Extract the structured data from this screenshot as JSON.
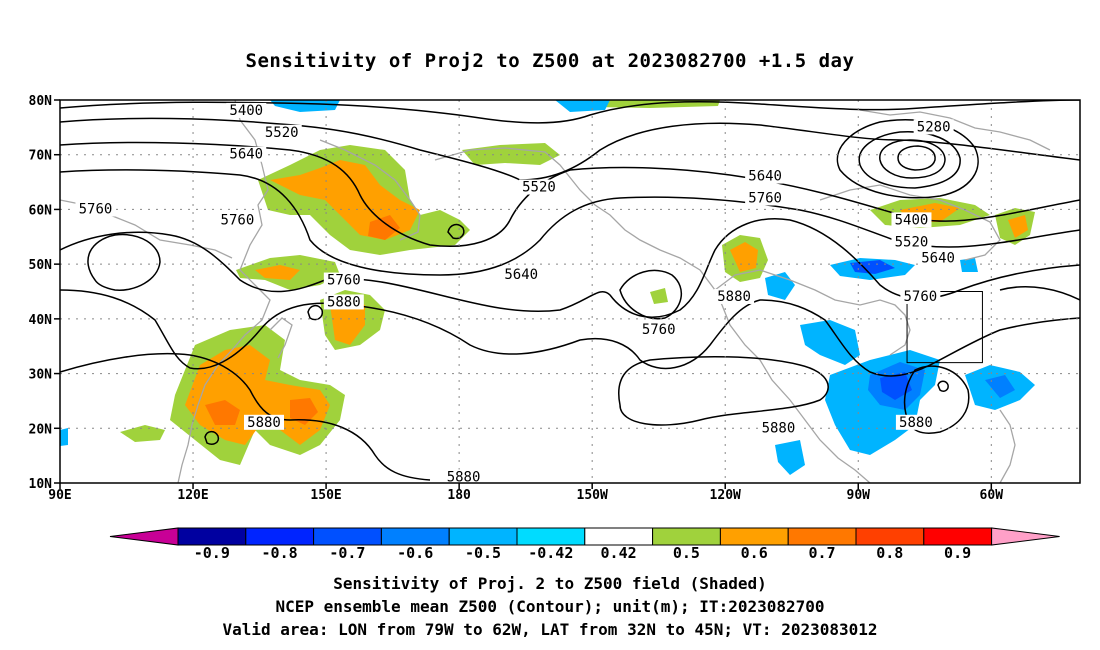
{
  "title": "Sensitivity of Proj2 to Z500 at 2023082700 +1.5 day",
  "map": {
    "lat_labels": [
      "80N",
      "70N",
      "60N",
      "50N",
      "40N",
      "30N",
      "20N",
      "10N"
    ],
    "lon_labels": [
      "90E",
      "120E",
      "150E",
      "180",
      "150W",
      "120W",
      "90W",
      "60W"
    ],
    "lat_values": [
      80,
      70,
      60,
      50,
      40,
      30,
      20,
      10
    ],
    "lon_values": [
      90,
      120,
      150,
      180,
      210,
      240,
      270,
      300
    ],
    "lon_range_deg": [
      90,
      320
    ],
    "lat_range_deg": [
      10,
      80
    ],
    "valid_box": {
      "lon_west": 281,
      "lon_east": 298,
      "lat_south": 32,
      "lat_north": 45
    },
    "contour_labels": [
      {
        "text": "5400",
        "lon": 132,
        "lat": 78
      },
      {
        "text": "5520",
        "lon": 140,
        "lat": 74
      },
      {
        "text": "5640",
        "lon": 132,
        "lat": 70
      },
      {
        "text": "5760",
        "lon": 98,
        "lat": 60
      },
      {
        "text": "5760",
        "lon": 130,
        "lat": 58
      },
      {
        "text": "5520",
        "lon": 198,
        "lat": 64
      },
      {
        "text": "5640",
        "lon": 194,
        "lat": 48
      },
      {
        "text": "5760",
        "lon": 154,
        "lat": 47
      },
      {
        "text": "5880",
        "lon": 154,
        "lat": 43
      },
      {
        "text": "5880",
        "lon": 136,
        "lat": 21
      },
      {
        "text": "5880",
        "lon": 181,
        "lat": 11
      },
      {
        "text": "5760",
        "lon": 225,
        "lat": 38
      },
      {
        "text": "5880",
        "lon": 242,
        "lat": 44
      },
      {
        "text": "5640",
        "lon": 249,
        "lat": 66
      },
      {
        "text": "5760",
        "lon": 249,
        "lat": 62
      },
      {
        "text": "5880",
        "lon": 252,
        "lat": 20
      },
      {
        "text": "5280",
        "lon": 287,
        "lat": 75
      },
      {
        "text": "5400",
        "lon": 282,
        "lat": 58
      },
      {
        "text": "5520",
        "lon": 282,
        "lat": 54
      },
      {
        "text": "5640",
        "lon": 288,
        "lat": 51
      },
      {
        "text": "5760",
        "lon": 284,
        "lat": 44
      },
      {
        "text": "5880",
        "lon": 283,
        "lat": 21
      }
    ]
  },
  "colorbar": {
    "labels": [
      "-0.9",
      "-0.8",
      "-0.7",
      "-0.6",
      "-0.5",
      "-0.42",
      "0.42",
      "0.5",
      "0.6",
      "0.7",
      "0.8",
      "0.9"
    ],
    "colors": [
      "#0000a0",
      "#0024ff",
      "#0050ff",
      "#0080ff",
      "#00b4ff",
      "#00dcff",
      "#ffffff",
      "#a0d23c",
      "#ffa000",
      "#ff7800",
      "#ff4000",
      "#ff0000"
    ],
    "low_end_color": "#c80096",
    "high_end_color": "#ffa0c8"
  },
  "captions": [
    "Sensitivity of Proj. 2 to Z500 field (Shaded)",
    "NCEP ensemble mean Z500 (Contour); unit(m); IT:2023082700",
    "Valid area: LON from 79W to 62W, LAT from 32N to 45N; VT: 2023083012"
  ]
}
